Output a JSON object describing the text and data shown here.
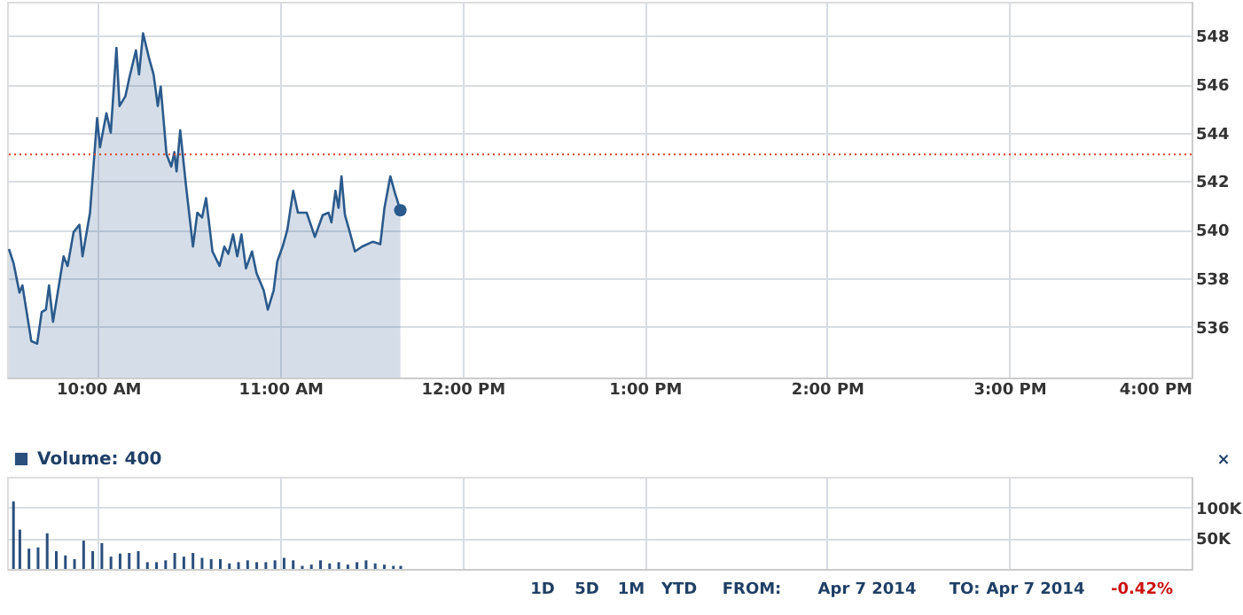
{
  "chart_data": [
    {
      "type": "area",
      "x": [
        9.51,
        9.536,
        9.568,
        9.584,
        9.633,
        9.665,
        9.69,
        9.713,
        9.73,
        9.752,
        9.81,
        9.832,
        9.865,
        9.897,
        9.914,
        9.955,
        9.98,
        9.994,
        10.01,
        10.045,
        10.069,
        10.1,
        10.117,
        10.149,
        10.172,
        10.207,
        10.224,
        10.246,
        10.278,
        10.304,
        10.327,
        10.343,
        10.375,
        10.401,
        10.418,
        10.43,
        10.45,
        10.482,
        10.52,
        10.544,
        10.57,
        10.592,
        10.627,
        10.666,
        10.692,
        10.714,
        10.74,
        10.763,
        10.786,
        10.811,
        10.844,
        10.869,
        10.908,
        10.931,
        10.963,
        10.983,
        11.012,
        11.038,
        11.07,
        11.096,
        11.144,
        11.189,
        11.232,
        11.264,
        11.28,
        11.302,
        11.319,
        11.335,
        11.354,
        11.377,
        11.409,
        11.448,
        11.506,
        11.548,
        11.571,
        11.603,
        11.629,
        11.658
      ],
      "series": [
        {
          "type": "area",
          "color": "#2b5a8c",
          "values": [
            539.2,
            538.6,
            537.4,
            537.7,
            535.4,
            535.3,
            536.6,
            536.7,
            537.7,
            536.2,
            538.9,
            538.5,
            539.9,
            540.2,
            538.9,
            540.7,
            543.2,
            544.6,
            543.4,
            544.8,
            544.0,
            547.5,
            545.1,
            545.5,
            546.3,
            547.4,
            546.4,
            548.1,
            547.1,
            546.4,
            545.1,
            545.9,
            543.1,
            542.6,
            543.2,
            542.4,
            544.1,
            541.8,
            539.3,
            540.7,
            540.5,
            541.3,
            539.1,
            538.5,
            539.3,
            539.0,
            539.8,
            538.9,
            539.8,
            538.4,
            539.1,
            538.2,
            537.5,
            536.7,
            537.5,
            538.7,
            539.3,
            540.0,
            541.6,
            540.7,
            540.7,
            539.7,
            540.6,
            540.7,
            540.3,
            541.6,
            540.9,
            542.2,
            540.6,
            540.0,
            539.1,
            539.3,
            539.5,
            539.4,
            540.9,
            542.2,
            541.5,
            540.8
          ]
        },
        {
          "type": "scatter",
          "color": "#2b5a8c",
          "marker": "circle",
          "x": [
            11.658
          ],
          "values": [
            540.8
          ]
        }
      ],
      "xlim": [
        9.5,
        16
      ],
      "xticks": [
        {
          "value": 10,
          "label": "10:00 AM"
        },
        {
          "value": 11,
          "label": "11:00 AM"
        },
        {
          "value": 12,
          "label": "12:00 PM"
        },
        {
          "value": 13,
          "label": "1:00 PM"
        },
        {
          "value": 14,
          "label": "2:00 PM"
        },
        {
          "value": 15,
          "label": "3:00 PM"
        },
        {
          "value": 16,
          "label": "4:00 PM"
        }
      ],
      "ylim": [
        533.9,
        549.4
      ],
      "yticks": [
        536,
        538,
        540,
        542,
        544,
        546,
        548
      ],
      "ref_lines": [
        {
          "axis": "y",
          "value": 543.1,
          "color": "#d9442b",
          "line_style": "dotted"
        }
      ],
      "grid": true
    },
    {
      "type": "bar",
      "x": [
        9.535,
        9.57,
        9.62,
        9.67,
        9.72,
        9.77,
        9.82,
        9.87,
        9.92,
        9.97,
        10.02,
        10.07,
        10.12,
        10.17,
        10.22,
        10.27,
        10.32,
        10.37,
        10.42,
        10.47,
        10.52,
        10.57,
        10.62,
        10.67,
        10.72,
        10.77,
        10.82,
        10.87,
        10.92,
        10.97,
        11.02,
        11.07,
        11.12,
        11.17,
        11.22,
        11.27,
        11.32,
        11.37,
        11.42,
        11.47,
        11.52,
        11.57,
        11.62,
        11.66
      ],
      "series": [
        {
          "name": "Volume: 400",
          "color": "#2a4f7c",
          "values": [
            110000,
            64000,
            33000,
            35000,
            58000,
            29000,
            22000,
            16000,
            46000,
            29000,
            42000,
            20000,
            25000,
            26000,
            29000,
            11000,
            11000,
            14000,
            26000,
            20000,
            26000,
            18000,
            16000,
            16000,
            9000,
            11000,
            14000,
            11000,
            11000,
            14000,
            18000,
            14000,
            5000,
            7000,
            14000,
            9000,
            11000,
            7000,
            11000,
            14000,
            9000,
            7000,
            5000,
            5000
          ]
        }
      ],
      "xlim": [
        9.5,
        16
      ],
      "xticks": [
        {
          "value": 10,
          "label": null
        },
        {
          "value": 11,
          "label": null
        },
        {
          "value": 12,
          "label": null
        },
        {
          "value": 13,
          "label": null
        },
        {
          "value": 14,
          "label": null
        },
        {
          "value": 15,
          "label": null
        },
        {
          "value": 16,
          "label": null
        }
      ],
      "ylim": [
        0,
        150000
      ],
      "yticks": [
        {
          "value": 50000,
          "label": "50K"
        },
        {
          "value": 100000,
          "label": "100K"
        }
      ],
      "tick_labels": "y",
      "grid": true,
      "legend": "top left",
      "annotations": [
        "1D",
        "5D",
        "1M",
        "YTD",
        "FROM:",
        "Apr 7 2014",
        "TO:",
        "Apr 7 2014",
        "-0.42%",
        "×"
      ]
    }
  ]
}
